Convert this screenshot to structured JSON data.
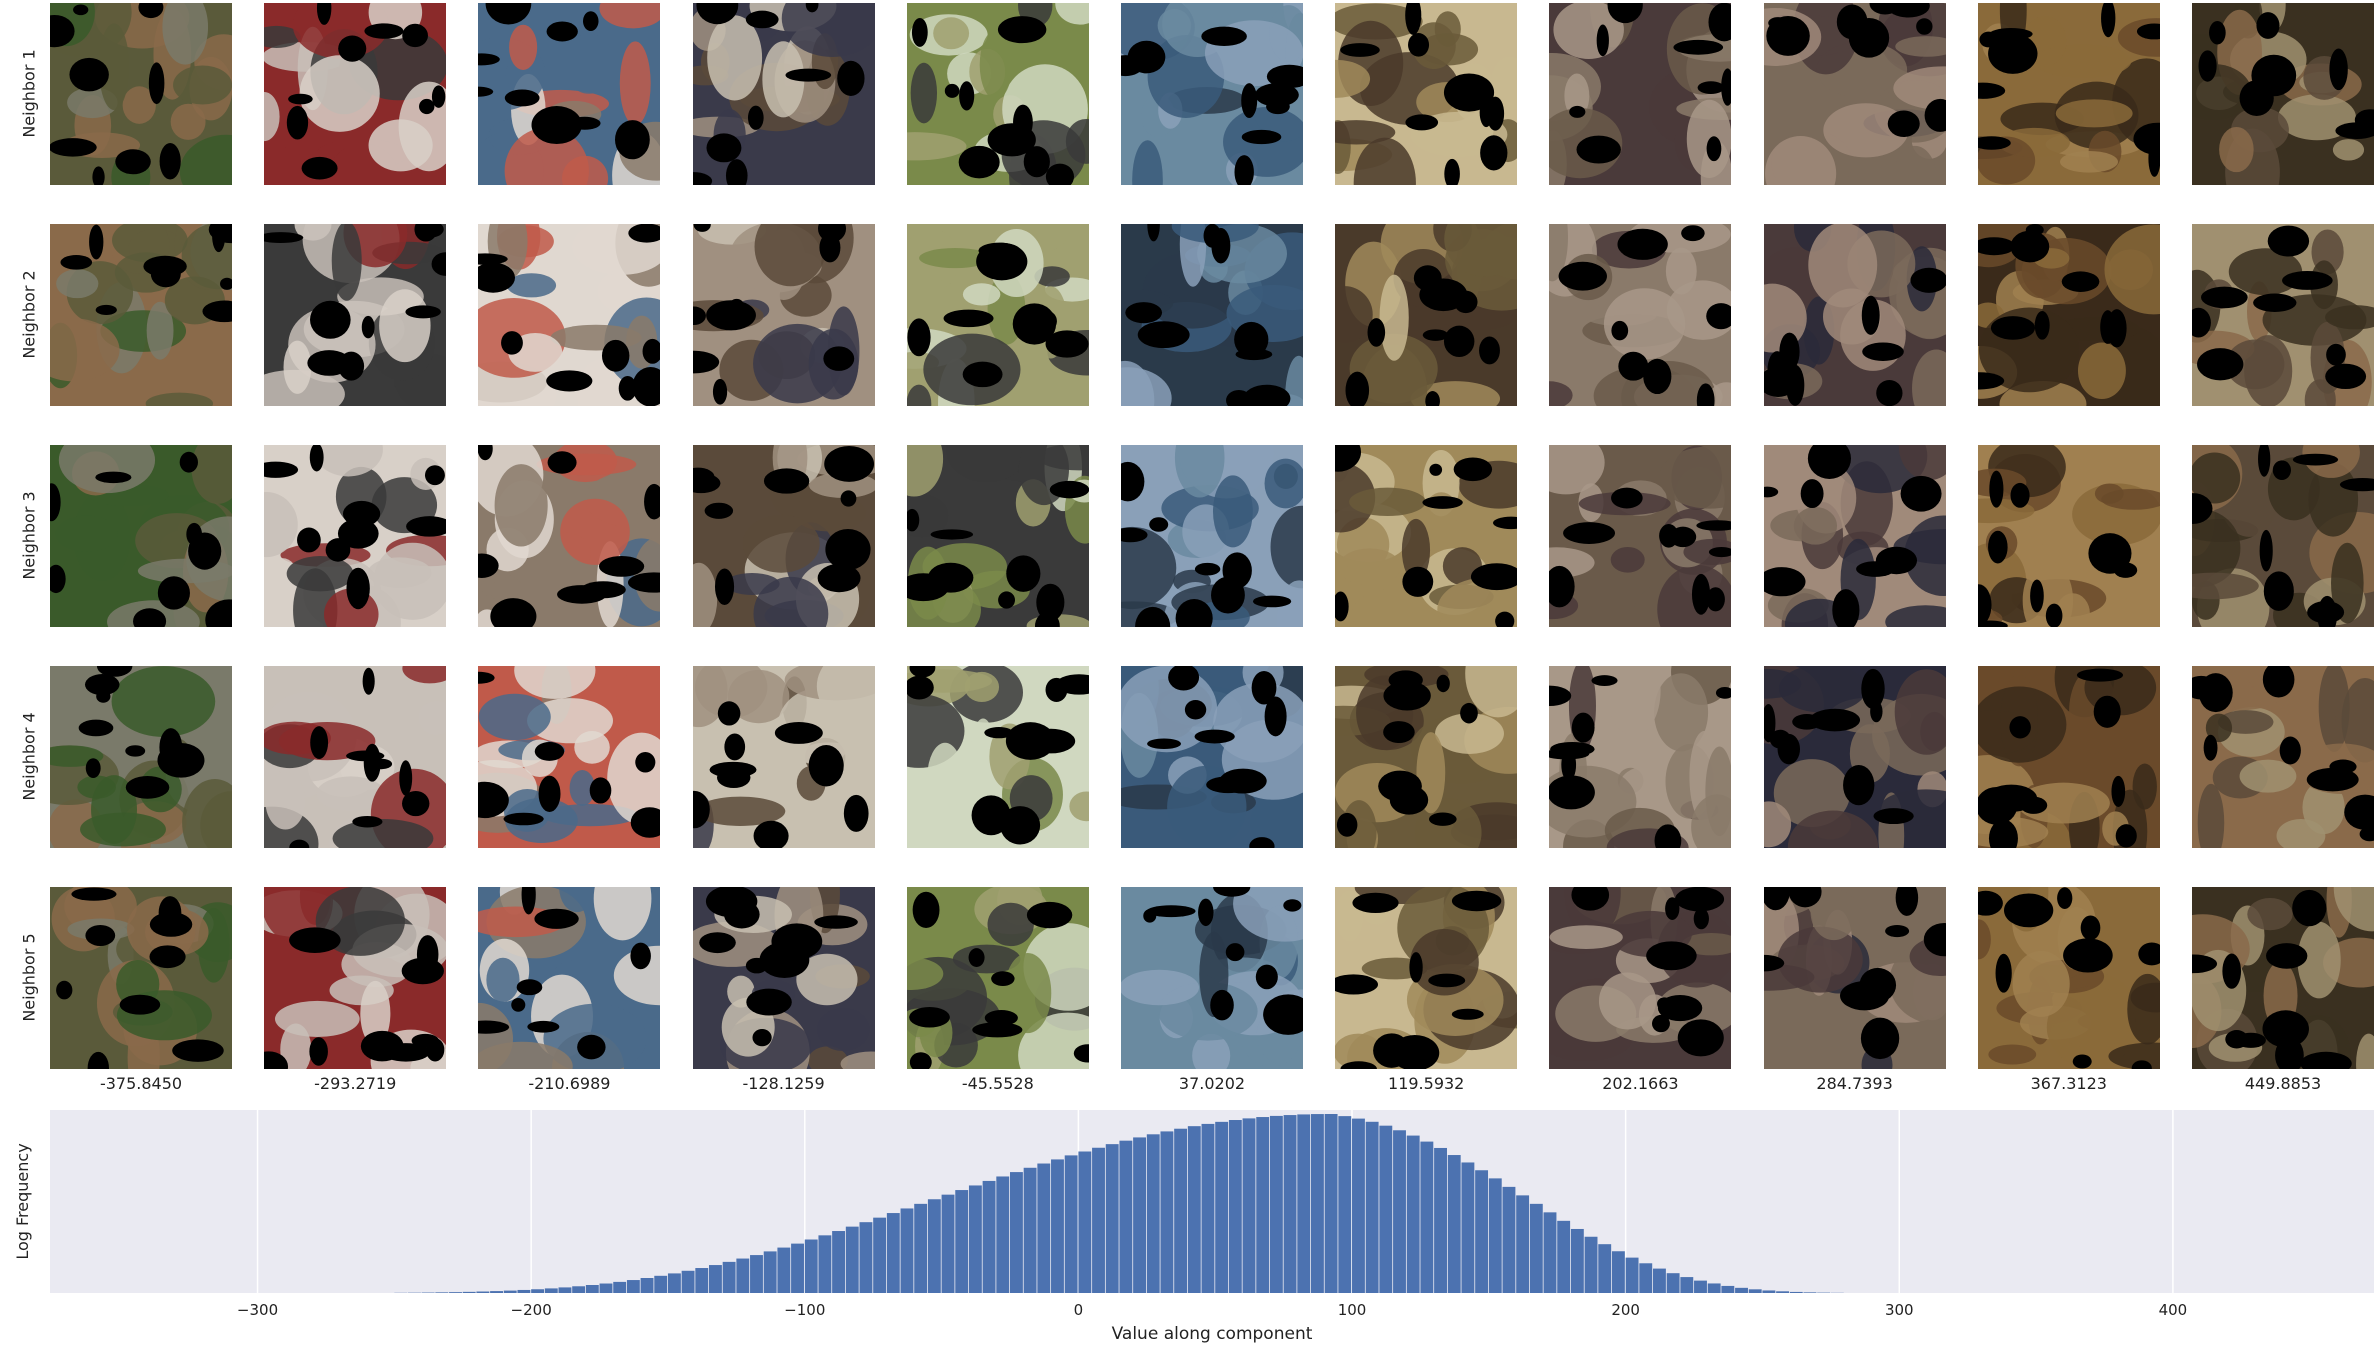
{
  "row_labels": [
    "Neighbor 1",
    "Neighbor 2",
    "Neighbor 3",
    "Neighbor 4",
    "Neighbor 5"
  ],
  "column_values": [
    "-375.8450",
    "-293.2719",
    "-210.6989",
    "-128.1259",
    "-45.5528",
    "37.0202",
    "119.5932",
    "202.1663",
    "284.7393",
    "367.3123",
    "449.8853"
  ],
  "thumb_palettes": [
    [
      "#5a5a3a",
      "#8a6a4a",
      "#3a5a2a",
      "#7a7a6a"
    ],
    [
      "#c8c0b8",
      "#8a2a2a",
      "#3a3a3a",
      "#d8d0c8"
    ],
    [
      "#8a7a6a",
      "#c05a4a",
      "#4a6a8a",
      "#e0d8d0"
    ],
    [
      "#a09080",
      "#5a4a3a",
      "#c8c0b0",
      "#3a3a4a"
    ],
    [
      "#7a8a4a",
      "#a0a070",
      "#3a3a3a",
      "#d0d8c0"
    ],
    [
      "#3a5a7a",
      "#6a8aa0",
      "#2a3a4a",
      "#8aa0b8"
    ],
    [
      "#a08a5a",
      "#6a5a3a",
      "#c8b890",
      "#4a3a2a"
    ],
    [
      "#8a7a6a",
      "#6a5a4a",
      "#a89888",
      "#4a3a3a"
    ],
    [
      "#7a6a5a",
      "#4a3a3a",
      "#a08a7a",
      "#2a2a3a"
    ],
    [
      "#6a4a2a",
      "#8a6a3a",
      "#3a2a1a",
      "#a08050"
    ],
    [
      "#5a4a3a",
      "#8a6a4a",
      "#3a3020",
      "#a09070"
    ]
  ],
  "chart_data": {
    "type": "bar",
    "xlabel": "Value along component",
    "ylabel": "Log Frequency",
    "xticks": [
      -300,
      -200,
      -100,
      0,
      100,
      200,
      300,
      400
    ],
    "xlim": [
      -375.845,
      473.5
    ],
    "bin_width": 5,
    "bin_start": -250,
    "values": [
      0.05,
      0.08,
      0.12,
      0.18,
      0.24,
      0.32,
      0.42,
      0.54,
      0.68,
      0.86,
      1.06,
      1.3,
      1.58,
      1.9,
      2.26,
      2.68,
      3.14,
      3.66,
      4.24,
      4.86,
      5.54,
      6.28,
      7.06,
      7.9,
      8.8,
      9.74,
      10.72,
      11.76,
      12.84,
      13.96,
      15.12,
      16.3,
      17.52,
      18.76,
      20.02,
      21.3,
      22.6,
      23.9,
      25.2,
      26.5,
      27.8,
      29.1,
      30.4,
      31.68,
      32.94,
      34.18,
      35.4,
      36.6,
      37.76,
      38.9,
      40.0,
      41.06,
      42.08,
      43.06,
      43.98,
      44.86,
      45.68,
      46.44,
      47.16,
      47.8,
      48.38,
      48.9,
      49.36,
      49.74,
      50.06,
      50.3,
      50.48,
      50.58,
      50.6,
      50.0,
      49.3,
      48.4,
      47.3,
      46.0,
      44.5,
      42.8,
      41.0,
      39.0,
      36.9,
      34.7,
      32.4,
      30.0,
      27.6,
      25.2,
      22.8,
      20.4,
      18.1,
      15.9,
      13.8,
      11.8,
      10.0,
      8.4,
      6.9,
      5.6,
      4.5,
      3.5,
      2.7,
      2.0,
      1.46,
      1.04,
      0.72,
      0.48,
      0.3,
      0.18,
      0.1,
      0.05
    ]
  }
}
